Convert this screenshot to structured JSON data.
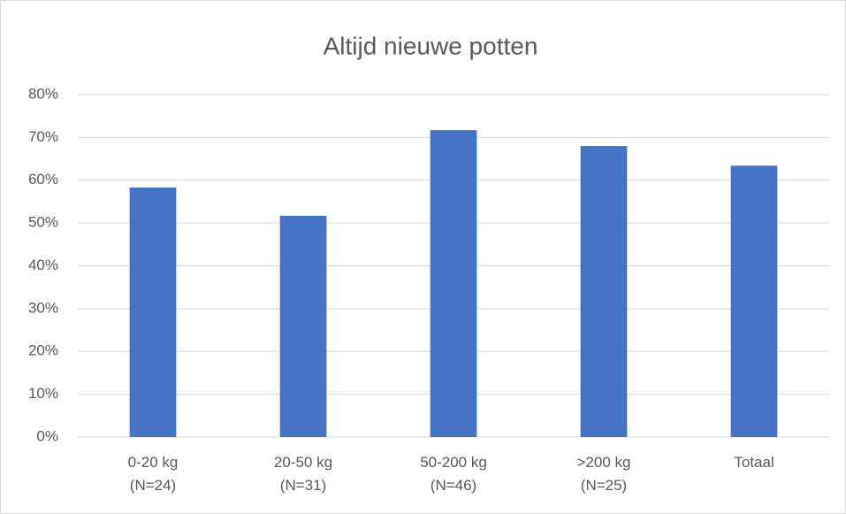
{
  "chart_data": {
    "type": "bar",
    "title": "Altijd nieuwe potten",
    "categories": [
      [
        "0-20 kg",
        "(N=24)"
      ],
      [
        "20-50 kg",
        "(N=31)"
      ],
      [
        "50-200 kg",
        "(N=46)"
      ],
      [
        ">200 kg",
        "(N=25)"
      ],
      [
        "Totaal"
      ]
    ],
    "values": [
      58.3,
      51.7,
      71.7,
      68.0,
      63.4
    ],
    "color": "#4472c4",
    "ylim": [
      0,
      80
    ],
    "yticks": [
      {
        "value": 0,
        "label": "0%"
      },
      {
        "value": 10,
        "label": "10%"
      },
      {
        "value": 20,
        "label": "20%"
      },
      {
        "value": 30,
        "label": "30%"
      },
      {
        "value": 40,
        "label": "40%"
      },
      {
        "value": 50,
        "label": "50%"
      },
      {
        "value": 60,
        "label": "60%"
      },
      {
        "value": 70,
        "label": "70%"
      },
      {
        "value": 80,
        "label": "80%"
      }
    ],
    "grid": true
  }
}
